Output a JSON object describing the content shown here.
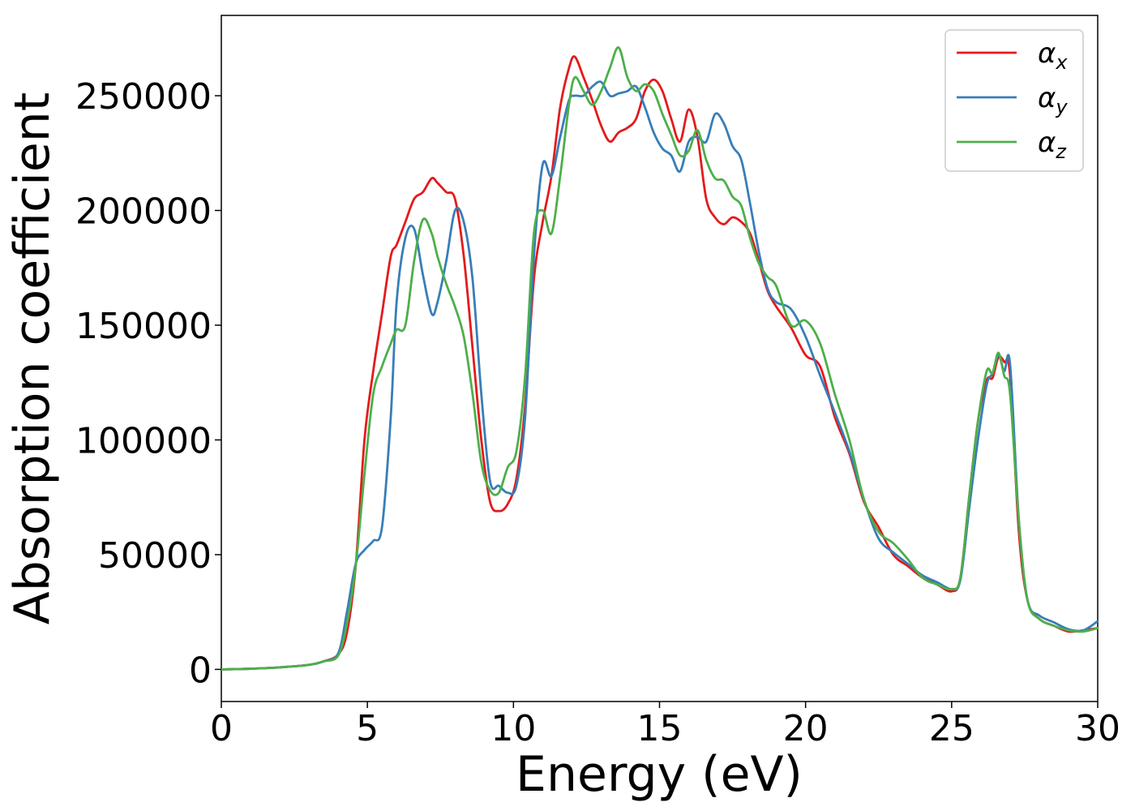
{
  "chart_data": {
    "type": "line",
    "title": "",
    "xlabel": "Energy (eV)",
    "ylabel": "Absorption coefficient",
    "xlim": [
      0,
      30
    ],
    "ylim": [
      -14000,
      285000
    ],
    "xticks": [
      0,
      5,
      10,
      15,
      20,
      25,
      30
    ],
    "xtick_labels": [
      "0",
      "5",
      "10",
      "15",
      "20",
      "25",
      "30"
    ],
    "yticks": [
      0,
      50000,
      100000,
      150000,
      200000,
      250000
    ],
    "ytick_labels": [
      "0",
      "50000",
      "100000",
      "150000",
      "200000",
      "250000"
    ],
    "grid": false,
    "legend_position": "top-right",
    "series": [
      {
        "name": "αx",
        "symbol": "α",
        "subscript": "x",
        "color": "#e41a1c",
        "x": [
          0,
          1,
          2,
          3,
          3.5,
          4,
          4.3,
          4.6,
          4.9,
          5.2,
          5.5,
          5.8,
          6.0,
          6.3,
          6.6,
          6.9,
          7.2,
          7.4,
          7.7,
          8.0,
          8.3,
          8.6,
          8.9,
          9.2,
          9.5,
          9.8,
          10.1,
          10.4,
          10.7,
          11.0,
          11.3,
          11.6,
          11.9,
          12.1,
          12.4,
          12.7,
          13.0,
          13.3,
          13.6,
          13.9,
          14.2,
          14.5,
          14.8,
          15.1,
          15.4,
          15.7,
          16.0,
          16.3,
          16.6,
          16.9,
          17.2,
          17.5,
          17.8,
          18.1,
          18.4,
          18.7,
          19.0,
          19.5,
          20.0,
          20.5,
          21.0,
          21.5,
          22.0,
          22.5,
          23.0,
          23.5,
          24.0,
          24.5,
          25.0,
          25.3,
          25.6,
          25.9,
          26.2,
          26.4,
          26.6,
          26.8,
          27.0,
          27.3,
          27.6,
          28.0,
          28.5,
          29.0,
          29.5,
          30.0
        ],
        "values": [
          0,
          300,
          900,
          2000,
          3500,
          6500,
          16000,
          45000,
          100000,
          130000,
          155000,
          180000,
          185000,
          195000,
          205000,
          208000,
          214000,
          212000,
          208000,
          205000,
          180000,
          140000,
          100000,
          73000,
          69000,
          72000,
          83000,
          115000,
          170000,
          195000,
          215000,
          245000,
          262000,
          267000,
          258000,
          248000,
          237000,
          230000,
          234000,
          236000,
          240000,
          252000,
          257000,
          252000,
          240000,
          230000,
          244000,
          232000,
          205000,
          197000,
          194000,
          197000,
          195000,
          190000,
          178000,
          165000,
          158000,
          149000,
          137000,
          132000,
          110000,
          94000,
          73000,
          62000,
          50000,
          45000,
          40000,
          37000,
          34000,
          40000,
          75000,
          108000,
          126000,
          127000,
          136000,
          134000,
          128000,
          60000,
          30000,
          22000,
          19000,
          16500,
          17000,
          18000
        ]
      },
      {
        "name": "αy",
        "symbol": "α",
        "subscript": "y",
        "color": "#377eb8",
        "x": [
          0,
          1,
          2,
          3,
          3.5,
          4,
          4.3,
          4.6,
          4.9,
          5.2,
          5.5,
          5.8,
          6.0,
          6.3,
          6.6,
          6.9,
          7.2,
          7.4,
          7.7,
          8.0,
          8.3,
          8.6,
          8.9,
          9.2,
          9.5,
          9.8,
          10.1,
          10.4,
          10.7,
          11.0,
          11.3,
          11.6,
          11.9,
          12.1,
          12.4,
          12.7,
          13.0,
          13.3,
          13.6,
          13.9,
          14.2,
          14.5,
          14.8,
          15.1,
          15.4,
          15.7,
          16.0,
          16.3,
          16.6,
          16.9,
          17.2,
          17.5,
          17.8,
          18.1,
          18.4,
          18.7,
          19.0,
          19.5,
          20.0,
          20.5,
          21.0,
          21.5,
          22.0,
          22.5,
          23.0,
          23.5,
          24.0,
          24.5,
          25.0,
          25.3,
          25.6,
          25.9,
          26.2,
          26.4,
          26.6,
          26.8,
          27.0,
          27.3,
          27.6,
          28.0,
          28.5,
          29.0,
          29.5,
          30.0
        ],
        "values": [
          0,
          300,
          900,
          2000,
          3500,
          7000,
          25000,
          46000,
          52000,
          56000,
          62000,
          110000,
          160000,
          188000,
          192000,
          172000,
          155000,
          160000,
          178000,
          200000,
          195000,
          170000,
          120000,
          82000,
          80000,
          77000,
          80000,
          110000,
          180000,
          220000,
          215000,
          232000,
          248000,
          250000,
          250000,
          254000,
          256000,
          250000,
          251000,
          252000,
          254000,
          245000,
          234000,
          227000,
          224000,
          217000,
          230000,
          232000,
          230000,
          242000,
          238000,
          228000,
          222000,
          203000,
          182000,
          166000,
          160000,
          157000,
          145000,
          128000,
          112000,
          95000,
          74000,
          57000,
          51000,
          46000,
          41000,
          38000,
          35000,
          39000,
          70000,
          100000,
          124000,
          129000,
          137000,
          130000,
          133000,
          65000,
          30000,
          23500,
          20500,
          17500,
          17000,
          21000
        ]
      },
      {
        "name": "αz",
        "symbol": "α",
        "subscript": "z",
        "color": "#4daf4a",
        "x": [
          0,
          1,
          2,
          3,
          3.5,
          4,
          4.3,
          4.6,
          4.9,
          5.2,
          5.5,
          5.8,
          6.0,
          6.3,
          6.6,
          6.9,
          7.2,
          7.4,
          7.7,
          8.0,
          8.3,
          8.6,
          8.9,
          9.2,
          9.5,
          9.8,
          10.1,
          10.4,
          10.7,
          11.0,
          11.3,
          11.6,
          11.9,
          12.1,
          12.4,
          12.7,
          13.0,
          13.3,
          13.6,
          13.9,
          14.2,
          14.5,
          14.8,
          15.1,
          15.4,
          15.7,
          16.0,
          16.3,
          16.6,
          16.9,
          17.2,
          17.5,
          17.8,
          18.1,
          18.4,
          18.7,
          19.0,
          19.5,
          20.0,
          20.5,
          21.0,
          21.5,
          22.0,
          22.5,
          23.0,
          23.5,
          24.0,
          24.5,
          25.0,
          25.3,
          25.6,
          25.9,
          26.2,
          26.4,
          26.6,
          26.8,
          27.0,
          27.3,
          27.6,
          28.0,
          28.5,
          29.0,
          29.5,
          30.0
        ],
        "values": [
          0,
          300,
          900,
          2000,
          3500,
          6000,
          20000,
          45000,
          85000,
          120000,
          132000,
          142000,
          148000,
          150000,
          178000,
          196000,
          190000,
          180000,
          168000,
          158000,
          145000,
          120000,
          90000,
          78000,
          77000,
          88000,
          95000,
          128000,
          190000,
          200000,
          190000,
          215000,
          246000,
          258000,
          252000,
          246000,
          252000,
          262000,
          271000,
          258000,
          252000,
          255000,
          252000,
          242000,
          233000,
          224000,
          226000,
          235000,
          222000,
          214000,
          213000,
          206000,
          202000,
          188000,
          177000,
          171000,
          167000,
          150000,
          152000,
          142000,
          120000,
          100000,
          74000,
          60000,
          55000,
          48000,
          40000,
          37000,
          35000,
          40000,
          75000,
          108000,
          130000,
          129000,
          138000,
          128000,
          120000,
          65000,
          30000,
          22000,
          19000,
          17000,
          16500,
          18000
        ]
      }
    ]
  }
}
